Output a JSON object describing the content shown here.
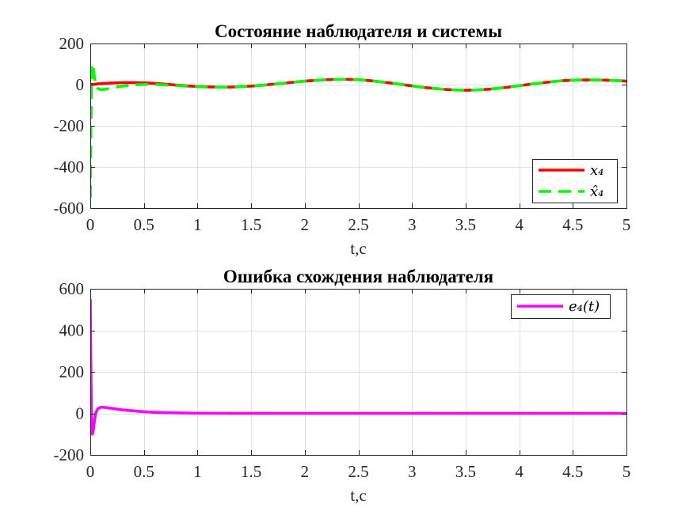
{
  "chart_data": [
    {
      "type": "line",
      "title": "Состояние наблюдателя и системы",
      "xlabel": "t,c",
      "xlim": [
        0,
        5
      ],
      "ylim": [
        -600,
        200
      ],
      "xticks": [
        0,
        0.5,
        1,
        1.5,
        2,
        2.5,
        3,
        3.5,
        4,
        4.5,
        5
      ],
      "xtick_labels": [
        "0",
        "0.5",
        "1",
        "1.5",
        "2",
        "2.5",
        "3",
        "3.5",
        "4",
        "4.5",
        "5"
      ],
      "yticks": [
        -600,
        -400,
        -200,
        0,
        200
      ],
      "ytick_labels": [
        "-600",
        "-400",
        "-200",
        "0",
        "200"
      ],
      "grid": true,
      "legend_position": "bottom-right",
      "x": [
        0,
        0.005,
        0.01,
        0.015,
        0.02,
        0.03,
        0.04,
        0.05,
        0.07,
        0.1,
        0.15,
        0.2,
        0.3,
        0.4,
        0.5,
        0.6,
        0.7,
        0.8,
        0.9,
        1,
        1.1,
        1.2,
        1.3,
        1.4,
        1.5,
        1.6,
        1.7,
        1.8,
        1.9,
        2,
        2.1,
        2.2,
        2.3,
        2.4,
        2.5,
        2.6,
        2.7,
        2.8,
        2.9,
        3,
        3.1,
        3.2,
        3.3,
        3.4,
        3.5,
        3.6,
        3.7,
        3.8,
        3.9,
        4,
        4.1,
        4.2,
        4.3,
        4.4,
        4.5,
        4.6,
        4.7,
        4.8,
        4.9,
        5
      ],
      "series": [
        {
          "name": "x₄",
          "color": "#ff0000",
          "line_style": "solid",
          "values": [
            0,
            0.3,
            0.5,
            0.8,
            1,
            1.5,
            2,
            2.5,
            3.5,
            5,
            6.5,
            8,
            10,
            10,
            9,
            6,
            2,
            -2,
            -6,
            -9,
            -11,
            -12,
            -12,
            -10,
            -7,
            -3,
            2,
            7,
            12,
            17,
            21,
            24,
            26,
            26,
            24,
            20,
            14,
            8,
            1,
            -6,
            -13,
            -18,
            -23,
            -26,
            -27,
            -26,
            -23,
            -18,
            -12,
            -5,
            2,
            8,
            14,
            19,
            22,
            23,
            23,
            22,
            20,
            17
          ]
        },
        {
          "name": "x̂₄",
          "color": "#00ff00",
          "line_style": "dashed",
          "values": [
            -550,
            -249.7,
            0.5,
            80.8,
            101,
            76.5,
            32,
            2.5,
            -18.5,
            -25,
            -21.5,
            -16,
            -7,
            -2,
            1,
            1,
            -1.5,
            -4.5,
            -7.6,
            -10,
            -11.7,
            -12.5,
            -12.3,
            -10.2,
            -7.1,
            -3,
            2,
            7,
            12,
            17,
            21,
            24,
            26,
            26,
            24,
            20,
            14,
            8,
            1,
            -6,
            -13,
            -18,
            -23,
            -26,
            -27,
            -26,
            -23,
            -18,
            -12,
            -5,
            2,
            8,
            14,
            19,
            22,
            23,
            23,
            22,
            20,
            17
          ]
        }
      ]
    },
    {
      "type": "line",
      "title": "Ошибка схождения наблюдателя",
      "xlabel": "t,c",
      "xlim": [
        0,
        5
      ],
      "ylim": [
        -200,
        600
      ],
      "xticks": [
        0,
        0.5,
        1,
        1.5,
        2,
        2.5,
        3,
        3.5,
        4,
        4.5,
        5
      ],
      "xtick_labels": [
        "0",
        "0.5",
        "1",
        "1.5",
        "2",
        "2.5",
        "3",
        "3.5",
        "4",
        "4.5",
        "5"
      ],
      "yticks": [
        -200,
        0,
        200,
        400,
        600
      ],
      "ytick_labels": [
        "-200",
        "0",
        "200",
        "400",
        "600"
      ],
      "grid": true,
      "legend_position": "top-right",
      "x": [
        0,
        0.005,
        0.01,
        0.015,
        0.02,
        0.03,
        0.04,
        0.05,
        0.07,
        0.1,
        0.15,
        0.2,
        0.3,
        0.4,
        0.5,
        0.6,
        0.7,
        0.8,
        0.9,
        1,
        1.1,
        1.2,
        1.3,
        1.4,
        1.5,
        1.6,
        1.7,
        1.8,
        1.9,
        2,
        2.1,
        2.2,
        2.3,
        2.4,
        2.5,
        2.6,
        2.7,
        2.8,
        2.9,
        3,
        3.1,
        3.2,
        3.3,
        3.4,
        3.5,
        3.6,
        3.7,
        3.8,
        3.9,
        4,
        4.1,
        4.2,
        4.3,
        4.4,
        4.5,
        4.6,
        4.7,
        4.8,
        4.9,
        5
      ],
      "series": [
        {
          "name": "e₄(t)",
          "color": "#ff00ff",
          "line_style": "solid",
          "values": [
            550,
            250,
            0,
            -80,
            -100,
            -75,
            -30,
            0,
            22,
            30,
            28,
            24,
            17,
            12,
            8,
            5,
            3.5,
            2.5,
            1.6,
            1,
            0.7,
            0.5,
            0.3,
            0.2,
            0.1,
            0,
            0,
            0,
            0,
            0,
            0,
            0,
            0,
            0,
            0,
            0,
            0,
            0,
            0,
            0,
            0,
            0,
            0,
            0,
            0,
            0,
            0,
            0,
            0,
            0,
            0,
            0,
            0,
            0,
            0,
            0,
            0,
            0,
            0,
            0
          ]
        }
      ]
    }
  ]
}
